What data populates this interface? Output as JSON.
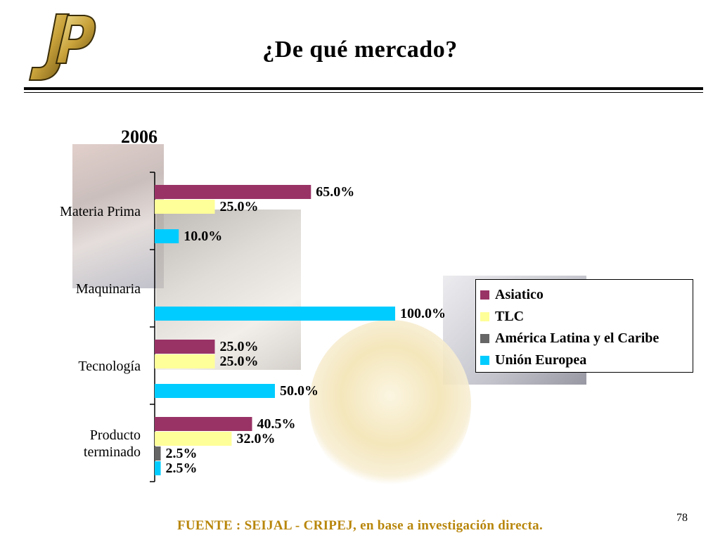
{
  "slide": {
    "title": "¿De qué mercado?",
    "year": "2006",
    "page_number": "78",
    "source": "FUENTE :  SEIJAL - CRIPEJ,  en base a investigación directa."
  },
  "colors": {
    "asiatico": "#993366",
    "tlc": "#ffff99",
    "america_latina": "#666666",
    "union_europea": "#00ccff",
    "source_text": "#b8860b"
  },
  "chart_data": {
    "type": "bar",
    "orientation": "horizontal",
    "title": "2006",
    "categories": [
      "Materia Prima",
      "Maquinaria",
      "Tecnología",
      "Producto terminado"
    ],
    "series": [
      {
        "name": "Asiatico",
        "values": [
          65.0,
          null,
          25.0,
          40.5
        ]
      },
      {
        "name": "TLC",
        "values": [
          25.0,
          null,
          25.0,
          32.0
        ]
      },
      {
        "name": "América Latina y el Caribe",
        "values": [
          null,
          null,
          null,
          2.5
        ]
      },
      {
        "name": "Unión Europea",
        "values": [
          10.0,
          100.0,
          50.0,
          2.5
        ]
      }
    ],
    "value_labels": [
      [
        "65.0%",
        null,
        "25.0%",
        "40.5%"
      ],
      [
        "25.0%",
        null,
        "25.0%",
        "32.0%"
      ],
      [
        null,
        null,
        null,
        "2.5%"
      ],
      [
        "10.0%",
        "100.0%",
        "50.0%",
        "2.5%"
      ]
    ],
    "xlim": [
      0,
      100
    ],
    "grid": false,
    "legend_position": "right"
  }
}
